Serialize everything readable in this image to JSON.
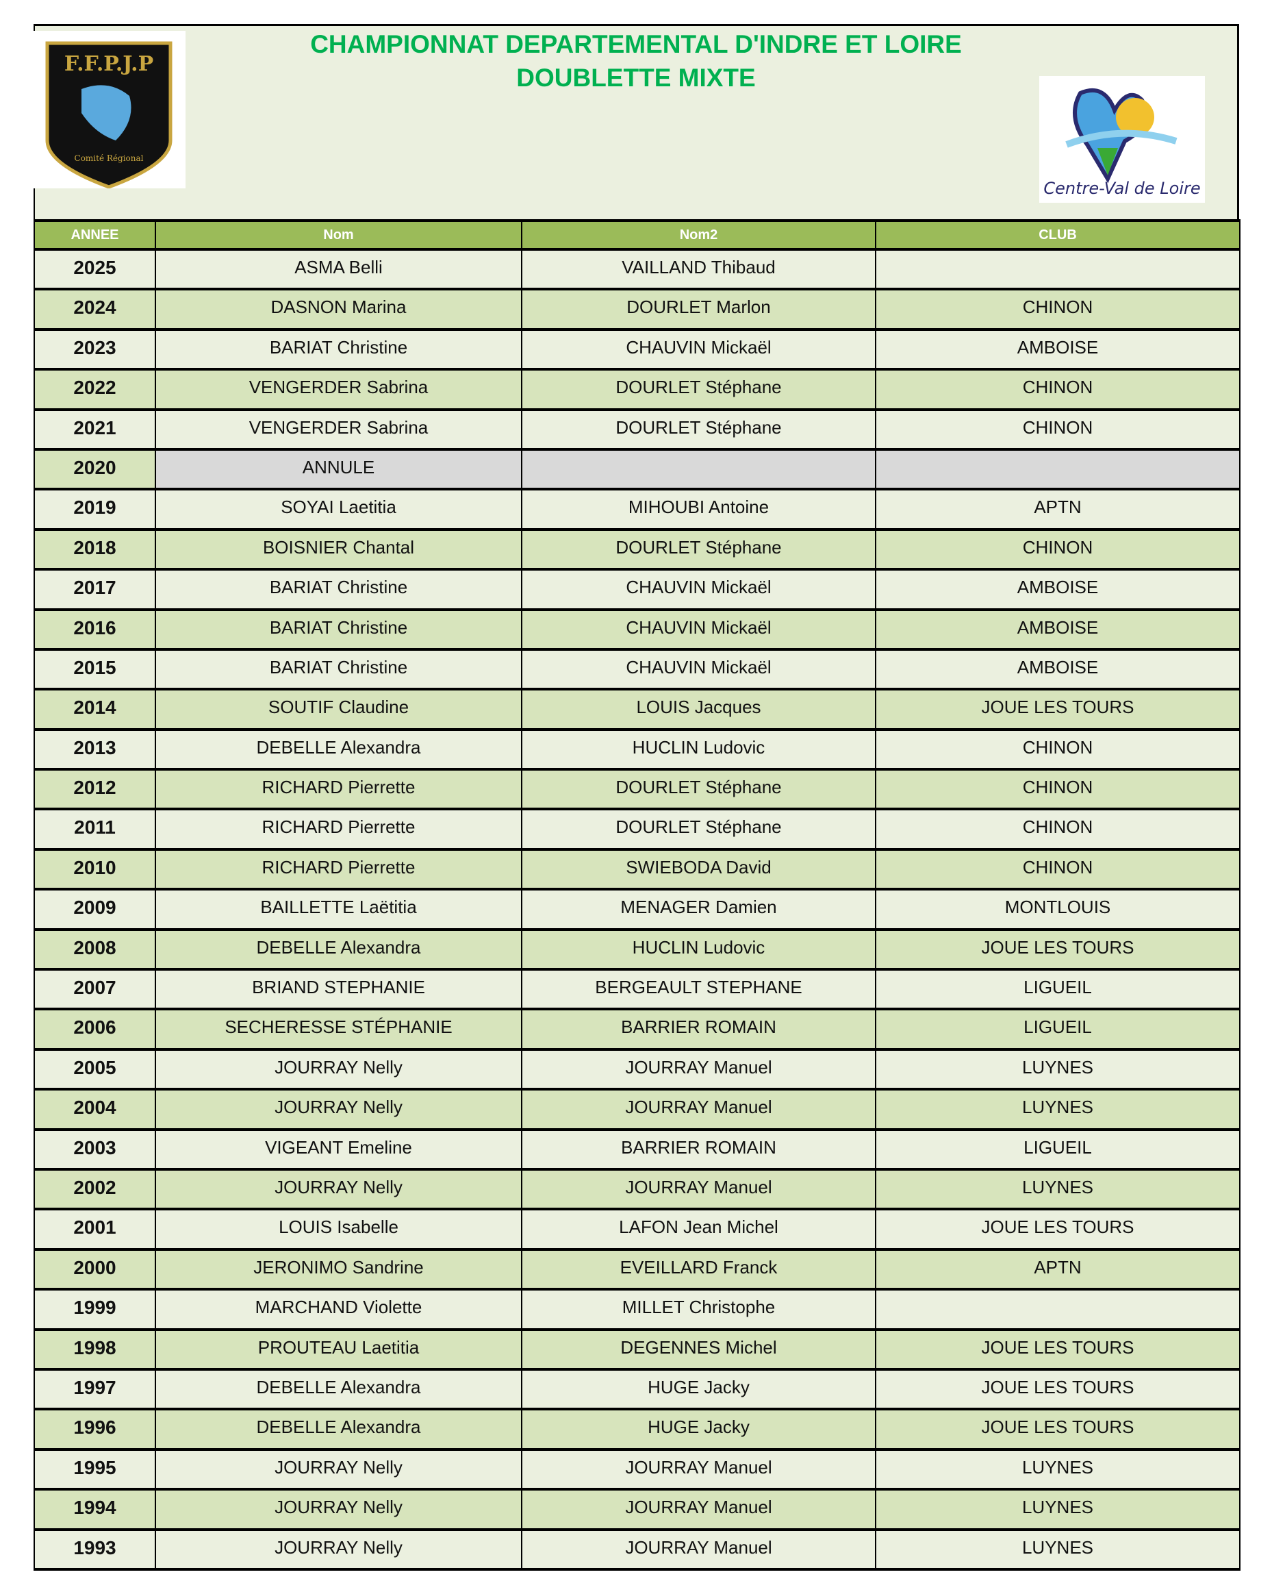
{
  "header": {
    "title": "CHAMPIONNAT DEPARTEMENTAL D'INDRE ET LOIRE",
    "subtitle": "DOUBLETTE MIXTE",
    "logo_left_text": "F.F.P.J.P Comité Indre et Loire Tours Comité Régional Centre Val de Loire",
    "logo_right_text": "Région Centre-Val de Loire"
  },
  "colors": {
    "title": "#00b050",
    "header_bg": "#9bbb59",
    "row_light": "#ebf0df",
    "row_dark": "#d7e4bc",
    "cancelled": "#d9d9d9"
  },
  "columns": [
    "ANNEE",
    "Nom",
    "Nom2",
    "CLUB"
  ],
  "rows": [
    [
      "2025",
      "ASMA Belli",
      "VAILLAND Thibaud",
      ""
    ],
    [
      "2024",
      "DASNON Marina",
      "DOURLET Marlon",
      "CHINON"
    ],
    [
      "2023",
      "BARIAT Christine",
      "CHAUVIN Mickaël",
      "AMBOISE"
    ],
    [
      "2022",
      "VENGERDER Sabrina",
      "DOURLET Stéphane",
      "CHINON"
    ],
    [
      "2021",
      "VENGERDER Sabrina",
      "DOURLET Stéphane",
      "CHINON"
    ],
    [
      "2020",
      "ANNULE",
      "",
      ""
    ],
    [
      "2019",
      "SOYAI Laetitia",
      "MIHOUBI Antoine",
      "APTN"
    ],
    [
      "2018",
      "BOISNIER Chantal",
      "DOURLET Stéphane",
      "CHINON"
    ],
    [
      "2017",
      "BARIAT Christine",
      "CHAUVIN Mickaël",
      "AMBOISE"
    ],
    [
      "2016",
      "BARIAT Christine",
      "CHAUVIN Mickaël",
      "AMBOISE"
    ],
    [
      "2015",
      "BARIAT Christine",
      "CHAUVIN Mickaël",
      "AMBOISE"
    ],
    [
      "2014",
      "SOUTIF Claudine",
      "LOUIS Jacques",
      "JOUE LES TOURS"
    ],
    [
      "2013",
      "DEBELLE Alexandra",
      "HUCLIN Ludovic",
      "CHINON"
    ],
    [
      "2012",
      "RICHARD Pierrette",
      "DOURLET Stéphane",
      "CHINON"
    ],
    [
      "2011",
      "RICHARD Pierrette",
      "DOURLET Stéphane",
      "CHINON"
    ],
    [
      "2010",
      "RICHARD Pierrette",
      "SWIEBODA David",
      "CHINON"
    ],
    [
      "2009",
      "BAILLETTE Laëtitia",
      "MENAGER Damien",
      "MONTLOUIS"
    ],
    [
      "2008",
      "DEBELLE Alexandra",
      "HUCLIN Ludovic",
      "JOUE LES TOURS"
    ],
    [
      "2007",
      "BRIAND STEPHANIE",
      "BERGEAULT STEPHANE",
      "LIGUEIL"
    ],
    [
      "2006",
      "SECHERESSE STÉPHANIE",
      "BARRIER ROMAIN",
      "LIGUEIL"
    ],
    [
      "2005",
      "JOURRAY Nelly",
      "JOURRAY Manuel",
      "LUYNES"
    ],
    [
      "2004",
      "JOURRAY Nelly",
      "JOURRAY Manuel",
      "LUYNES"
    ],
    [
      "2003",
      "VIGEANT Emeline",
      "BARRIER ROMAIN",
      "LIGUEIL"
    ],
    [
      "2002",
      "JOURRAY Nelly",
      "JOURRAY Manuel",
      "LUYNES"
    ],
    [
      "2001",
      "LOUIS Isabelle",
      "LAFON Jean Michel",
      "JOUE LES TOURS"
    ],
    [
      "2000",
      "JERONIMO Sandrine",
      "EVEILLARD Franck",
      "APTN"
    ],
    [
      "1999",
      "MARCHAND Violette",
      "MILLET Christophe",
      ""
    ],
    [
      "1998",
      "PROUTEAU Laetitia",
      "DEGENNES Michel",
      "JOUE LES TOURS"
    ],
    [
      "1997",
      "DEBELLE Alexandra",
      "HUGE Jacky",
      "JOUE LES TOURS"
    ],
    [
      "1996",
      "DEBELLE Alexandra",
      "HUGE Jacky",
      "JOUE LES TOURS"
    ],
    [
      "1995",
      "JOURRAY Nelly",
      "JOURRAY Manuel",
      "LUYNES"
    ],
    [
      "1994",
      "JOURRAY Nelly",
      "JOURRAY Manuel",
      "LUYNES"
    ],
    [
      "1993",
      "JOURRAY Nelly",
      "JOURRAY Manuel",
      "LUYNES"
    ]
  ]
}
